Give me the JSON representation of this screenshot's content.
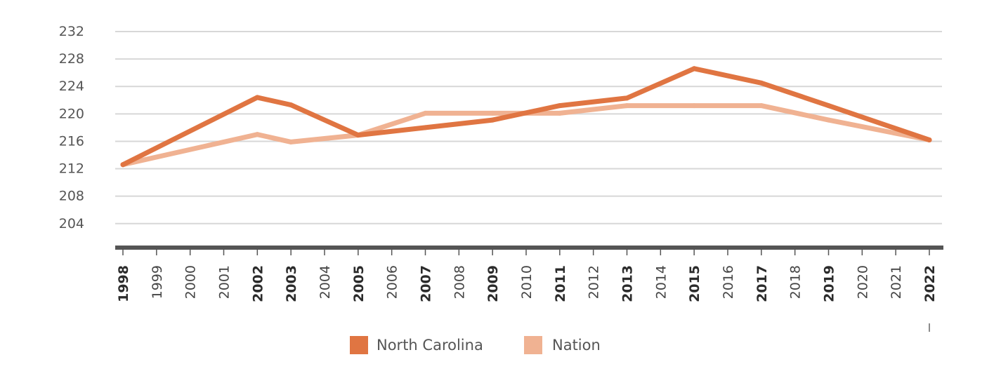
{
  "chart_data": {
    "type": "line",
    "title": "",
    "xlabel": "",
    "ylabel": "",
    "categories": [
      "1998",
      "1999",
      "2000",
      "2001",
      "2002",
      "2003",
      "2004",
      "2005",
      "2006",
      "2007",
      "2008",
      "2009",
      "2010",
      "2011",
      "2012",
      "2013",
      "2014",
      "2015",
      "2016",
      "2017",
      "2018",
      "2019",
      "2020",
      "2021",
      "2022"
    ],
    "bold_categories": [
      "1998",
      "2002",
      "2003",
      "2005",
      "2007",
      "2009",
      "2011",
      "2013",
      "2015",
      "2017",
      "2019",
      "2022"
    ],
    "yticks": [
      204,
      208,
      212,
      216,
      220,
      224,
      228,
      232
    ],
    "ylim": [
      200.5,
      232
    ],
    "grid": true,
    "legend_position": "bottom-center",
    "series": [
      {
        "name": "North Carolina",
        "color": "#e07542",
        "points": [
          {
            "x": "1998",
            "y": 212.6
          },
          {
            "x": "2002",
            "y": 222.4
          },
          {
            "x": "2003",
            "y": 221.3
          },
          {
            "x": "2005",
            "y": 216.9
          },
          {
            "x": "2007",
            "y": 218.0
          },
          {
            "x": "2009",
            "y": 219.1
          },
          {
            "x": "2011",
            "y": 221.2
          },
          {
            "x": "2013",
            "y": 222.3
          },
          {
            "x": "2015",
            "y": 226.6
          },
          {
            "x": "2017",
            "y": 224.5
          },
          {
            "x": "2019",
            "y": 221.2
          },
          {
            "x": "2022",
            "y": 216.2
          }
        ]
      },
      {
        "name": "Nation",
        "color": "#f0b292",
        "points": [
          {
            "x": "1998",
            "y": 212.6
          },
          {
            "x": "2002",
            "y": 217.0
          },
          {
            "x": "2003",
            "y": 215.9
          },
          {
            "x": "2005",
            "y": 216.9
          },
          {
            "x": "2007",
            "y": 220.1
          },
          {
            "x": "2009",
            "y": 220.1
          },
          {
            "x": "2011",
            "y": 220.1
          },
          {
            "x": "2013",
            "y": 221.2
          },
          {
            "x": "2015",
            "y": 221.2
          },
          {
            "x": "2017",
            "y": 221.2
          },
          {
            "x": "2019",
            "y": 219.1
          },
          {
            "x": "2022",
            "y": 216.2
          }
        ]
      }
    ],
    "draw_order": [
      "Nation",
      "North Carolina"
    ]
  }
}
